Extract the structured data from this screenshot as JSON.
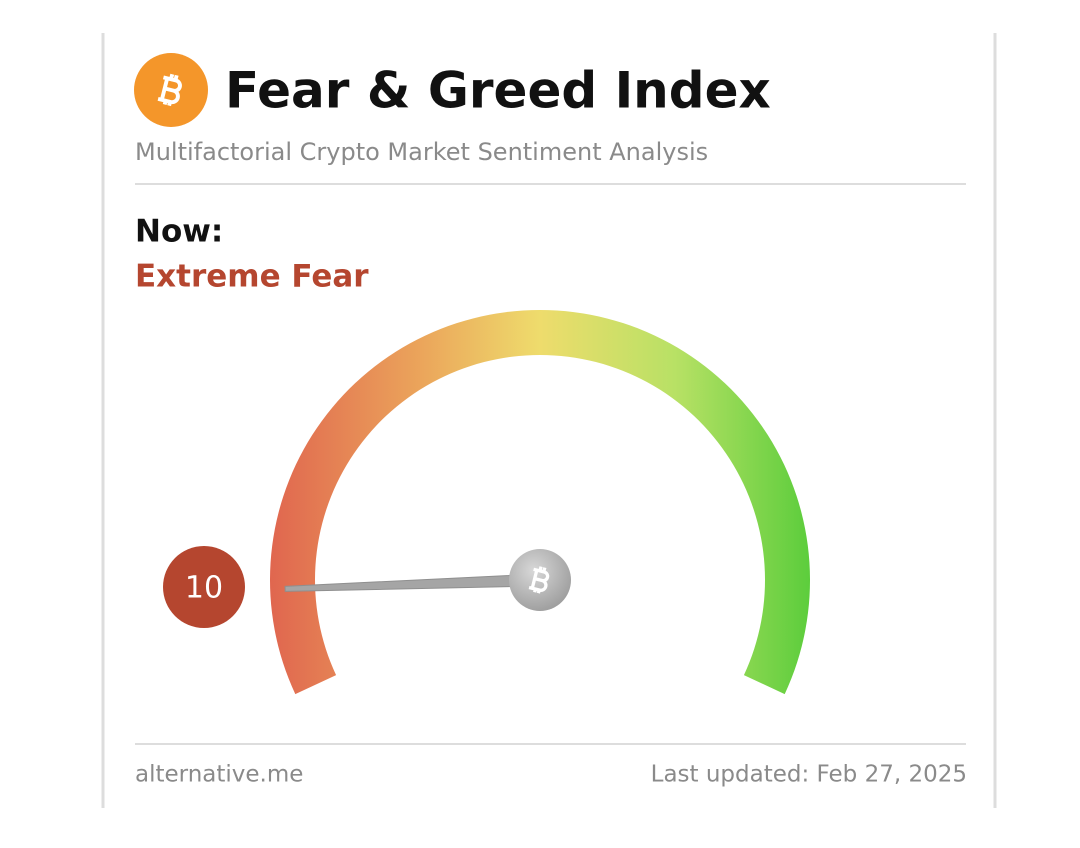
{
  "header": {
    "title": "Fear & Greed Index",
    "subtitle": "Multifactorial Crypto Market Sentiment Analysis"
  },
  "now": {
    "label": "Now:",
    "classification": "Extreme Fear"
  },
  "gauge": {
    "value": 10,
    "range": [
      0,
      100
    ]
  },
  "footer": {
    "source": "alternative.me",
    "updated": "Last updated: Feb 27, 2025"
  }
}
